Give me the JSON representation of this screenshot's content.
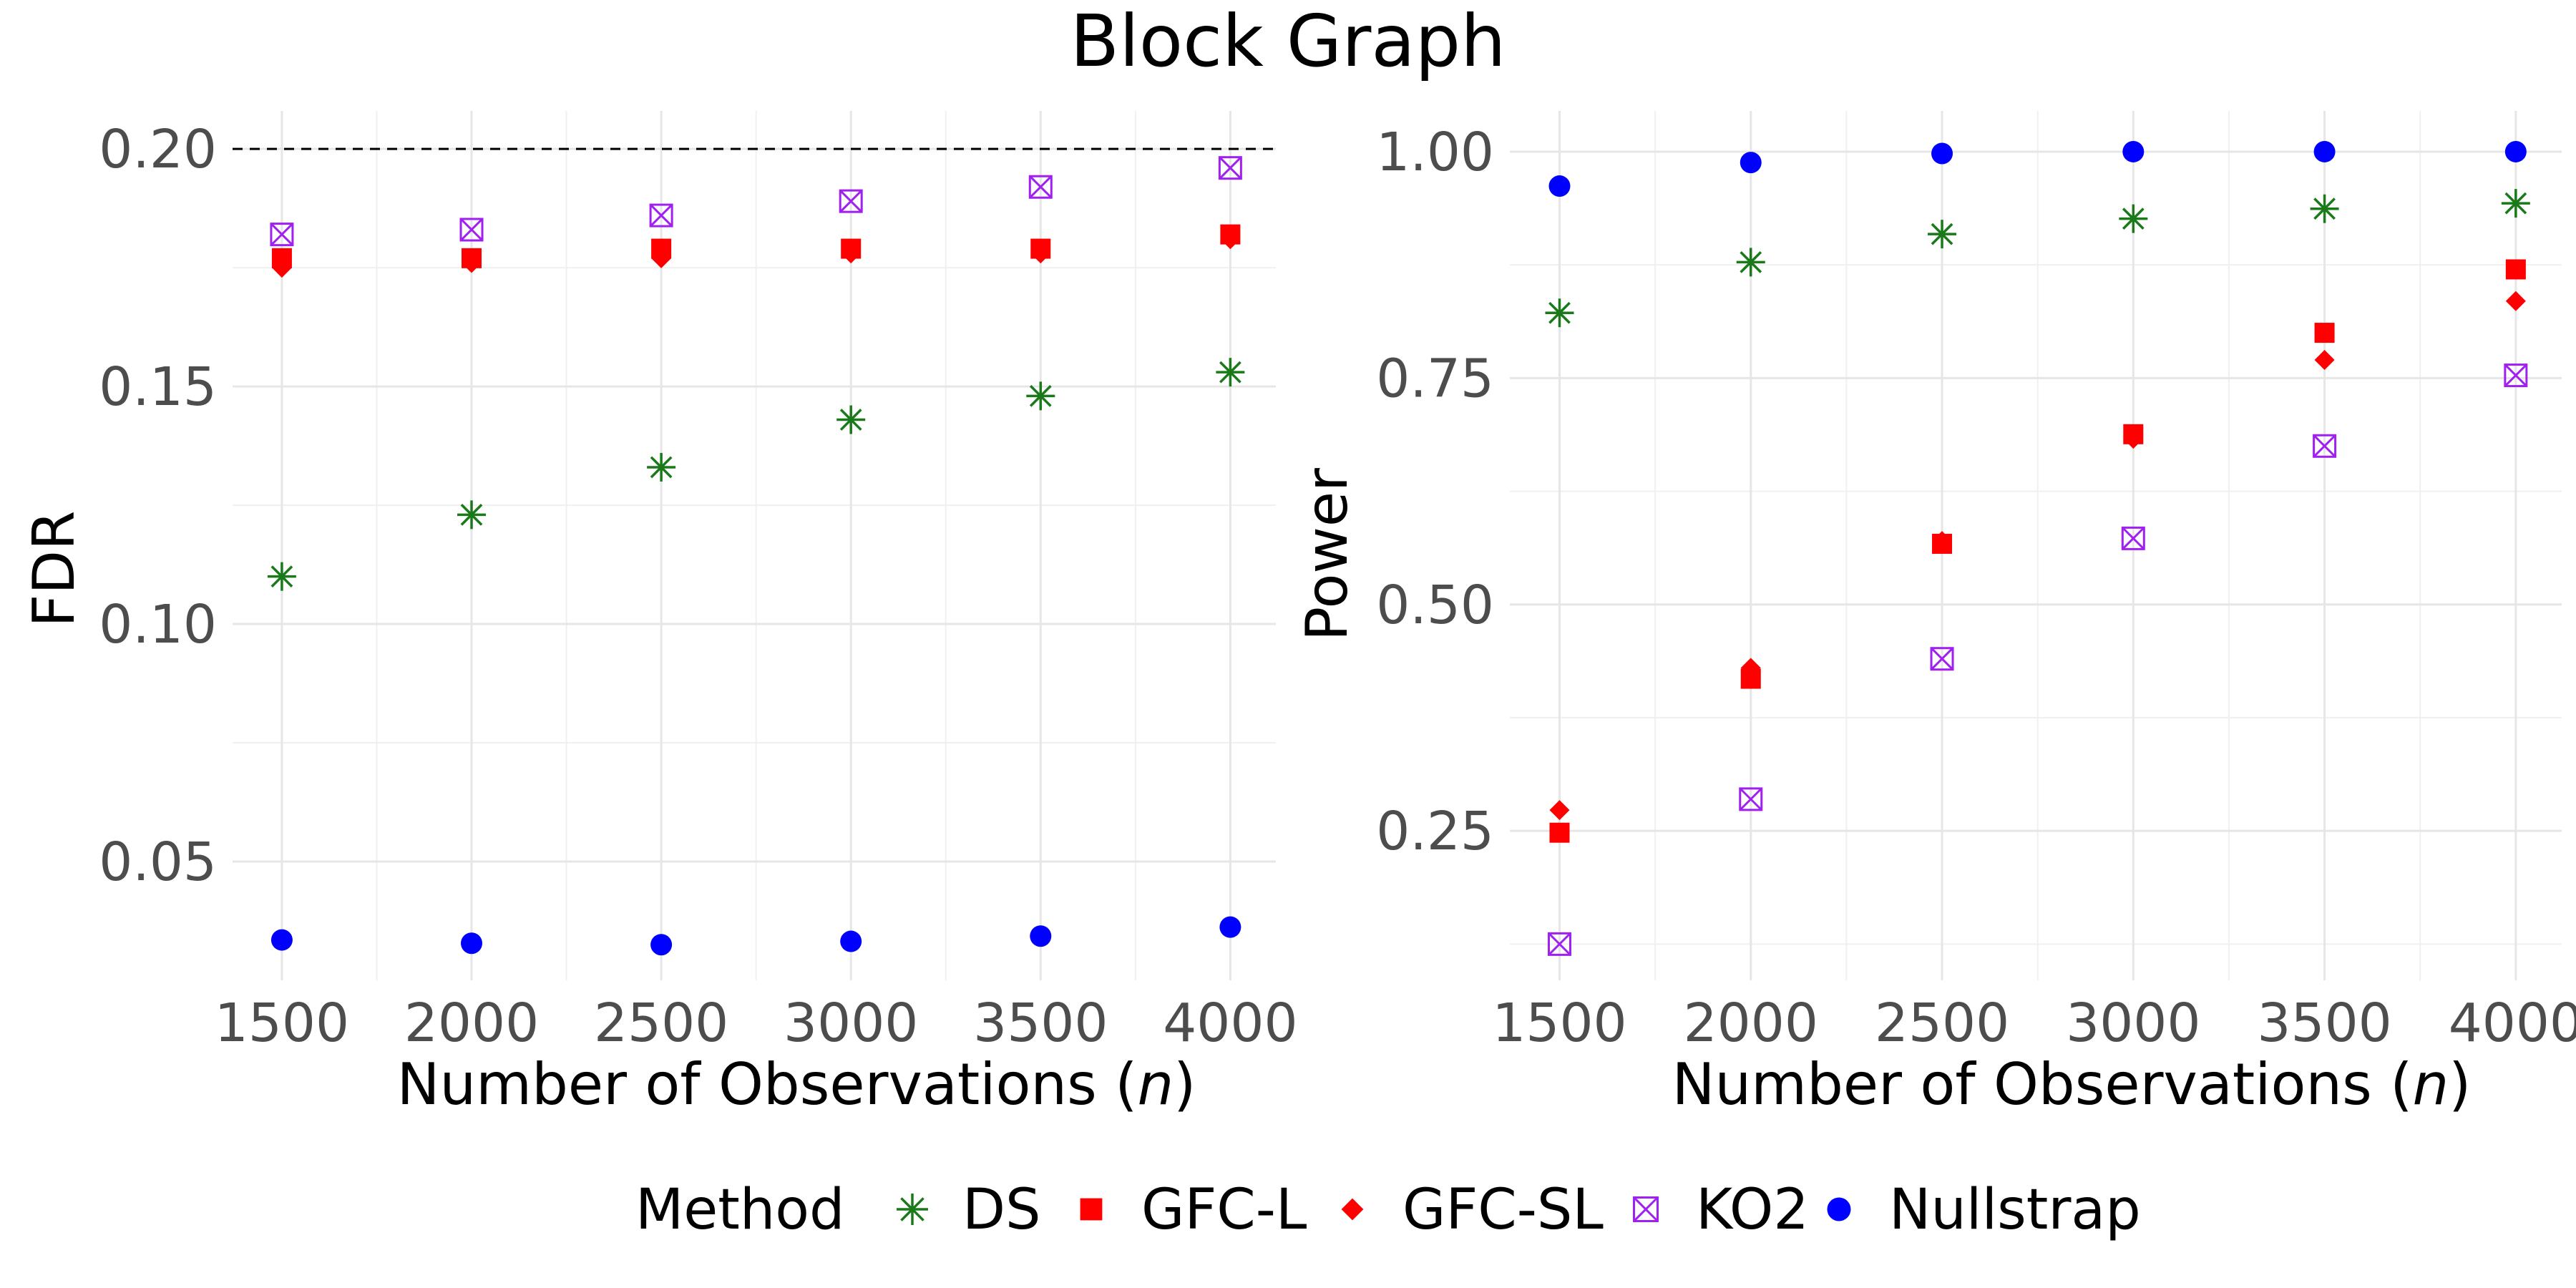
{
  "figure": {
    "title": "Block Graph"
  },
  "legend": {
    "title": "Method",
    "position": "bottom",
    "entries": [
      {
        "name": "DS",
        "shape": "asterisk",
        "color": "#1a7a1a"
      },
      {
        "name": "GFC-L",
        "shape": "square",
        "color": "#ff0000"
      },
      {
        "name": "GFC-SL",
        "shape": "diamond",
        "color": "#ff0000"
      },
      {
        "name": "KO2",
        "shape": "square-cross",
        "color": "#a020f0"
      },
      {
        "name": "Nullstrap",
        "shape": "circle",
        "color": "#0000ff"
      }
    ]
  },
  "chart_data": [
    {
      "type": "scatter",
      "xlabel": "Number of Observations (n)",
      "xlabel_parts": {
        "before": "Number of Observations (",
        "var": "n",
        "after": ")"
      },
      "ylabel": "FDR",
      "x": [
        1500,
        2000,
        2500,
        3000,
        3500,
        4000
      ],
      "xticks": [
        "1500",
        "2000",
        "2500",
        "3000",
        "3500",
        "4000"
      ],
      "xlim": [
        1370,
        4120
      ],
      "ylim": [
        0.025,
        0.208
      ],
      "yticks": [
        0.05,
        0.1,
        0.15,
        0.2
      ],
      "ytick_labels": [
        "0.05",
        "0.10",
        "0.15",
        "0.20"
      ],
      "reference_line": {
        "y": 0.2,
        "style": "dashed"
      },
      "grid": true,
      "series": [
        {
          "name": "DS",
          "values": [
            0.11,
            0.123,
            0.133,
            0.143,
            0.148,
            0.153
          ]
        },
        {
          "name": "GFC-L",
          "values": [
            0.177,
            0.177,
            0.179,
            0.179,
            0.179,
            0.182
          ]
        },
        {
          "name": "GFC-SL",
          "values": [
            0.175,
            0.176,
            0.177,
            0.178,
            0.178,
            0.181
          ]
        },
        {
          "name": "KO2",
          "values": [
            0.182,
            0.183,
            0.186,
            0.189,
            0.192,
            0.196
          ]
        },
        {
          "name": "Nullstrap",
          "values": [
            0.0335,
            0.0328,
            0.0325,
            0.0332,
            0.0343,
            0.0362
          ]
        }
      ]
    },
    {
      "type": "scatter",
      "xlabel": "Number of Observations (n)",
      "xlabel_parts": {
        "before": "Number of Observations (",
        "var": "n",
        "after": ")"
      },
      "ylabel": "Power",
      "x": [
        1500,
        2000,
        2500,
        3000,
        3500,
        4000
      ],
      "xticks": [
        "1500",
        "2000",
        "2500",
        "3000",
        "3500",
        "4000"
      ],
      "xlim": [
        1370,
        4120
      ],
      "ylim": [
        0.085,
        1.045
      ],
      "yticks": [
        0.25,
        0.5,
        0.75,
        1.0
      ],
      "ytick_labels": [
        "0.25",
        "0.50",
        "0.75",
        "1.00"
      ],
      "grid": true,
      "series": [
        {
          "name": "DS",
          "values": [
            0.822,
            0.878,
            0.909,
            0.926,
            0.937,
            0.943
          ]
        },
        {
          "name": "GFC-L",
          "values": [
            0.248,
            0.418,
            0.567,
            0.688,
            0.8,
            0.87
          ]
        },
        {
          "name": "GFC-SL",
          "values": [
            0.273,
            0.43,
            0.57,
            0.683,
            0.77,
            0.835
          ]
        },
        {
          "name": "KO2",
          "values": [
            0.125,
            0.285,
            0.44,
            0.573,
            0.675,
            0.753
          ]
        },
        {
          "name": "Nullstrap",
          "values": [
            0.962,
            0.988,
            0.998,
            1.0,
            1.0,
            1.0
          ]
        }
      ]
    }
  ]
}
